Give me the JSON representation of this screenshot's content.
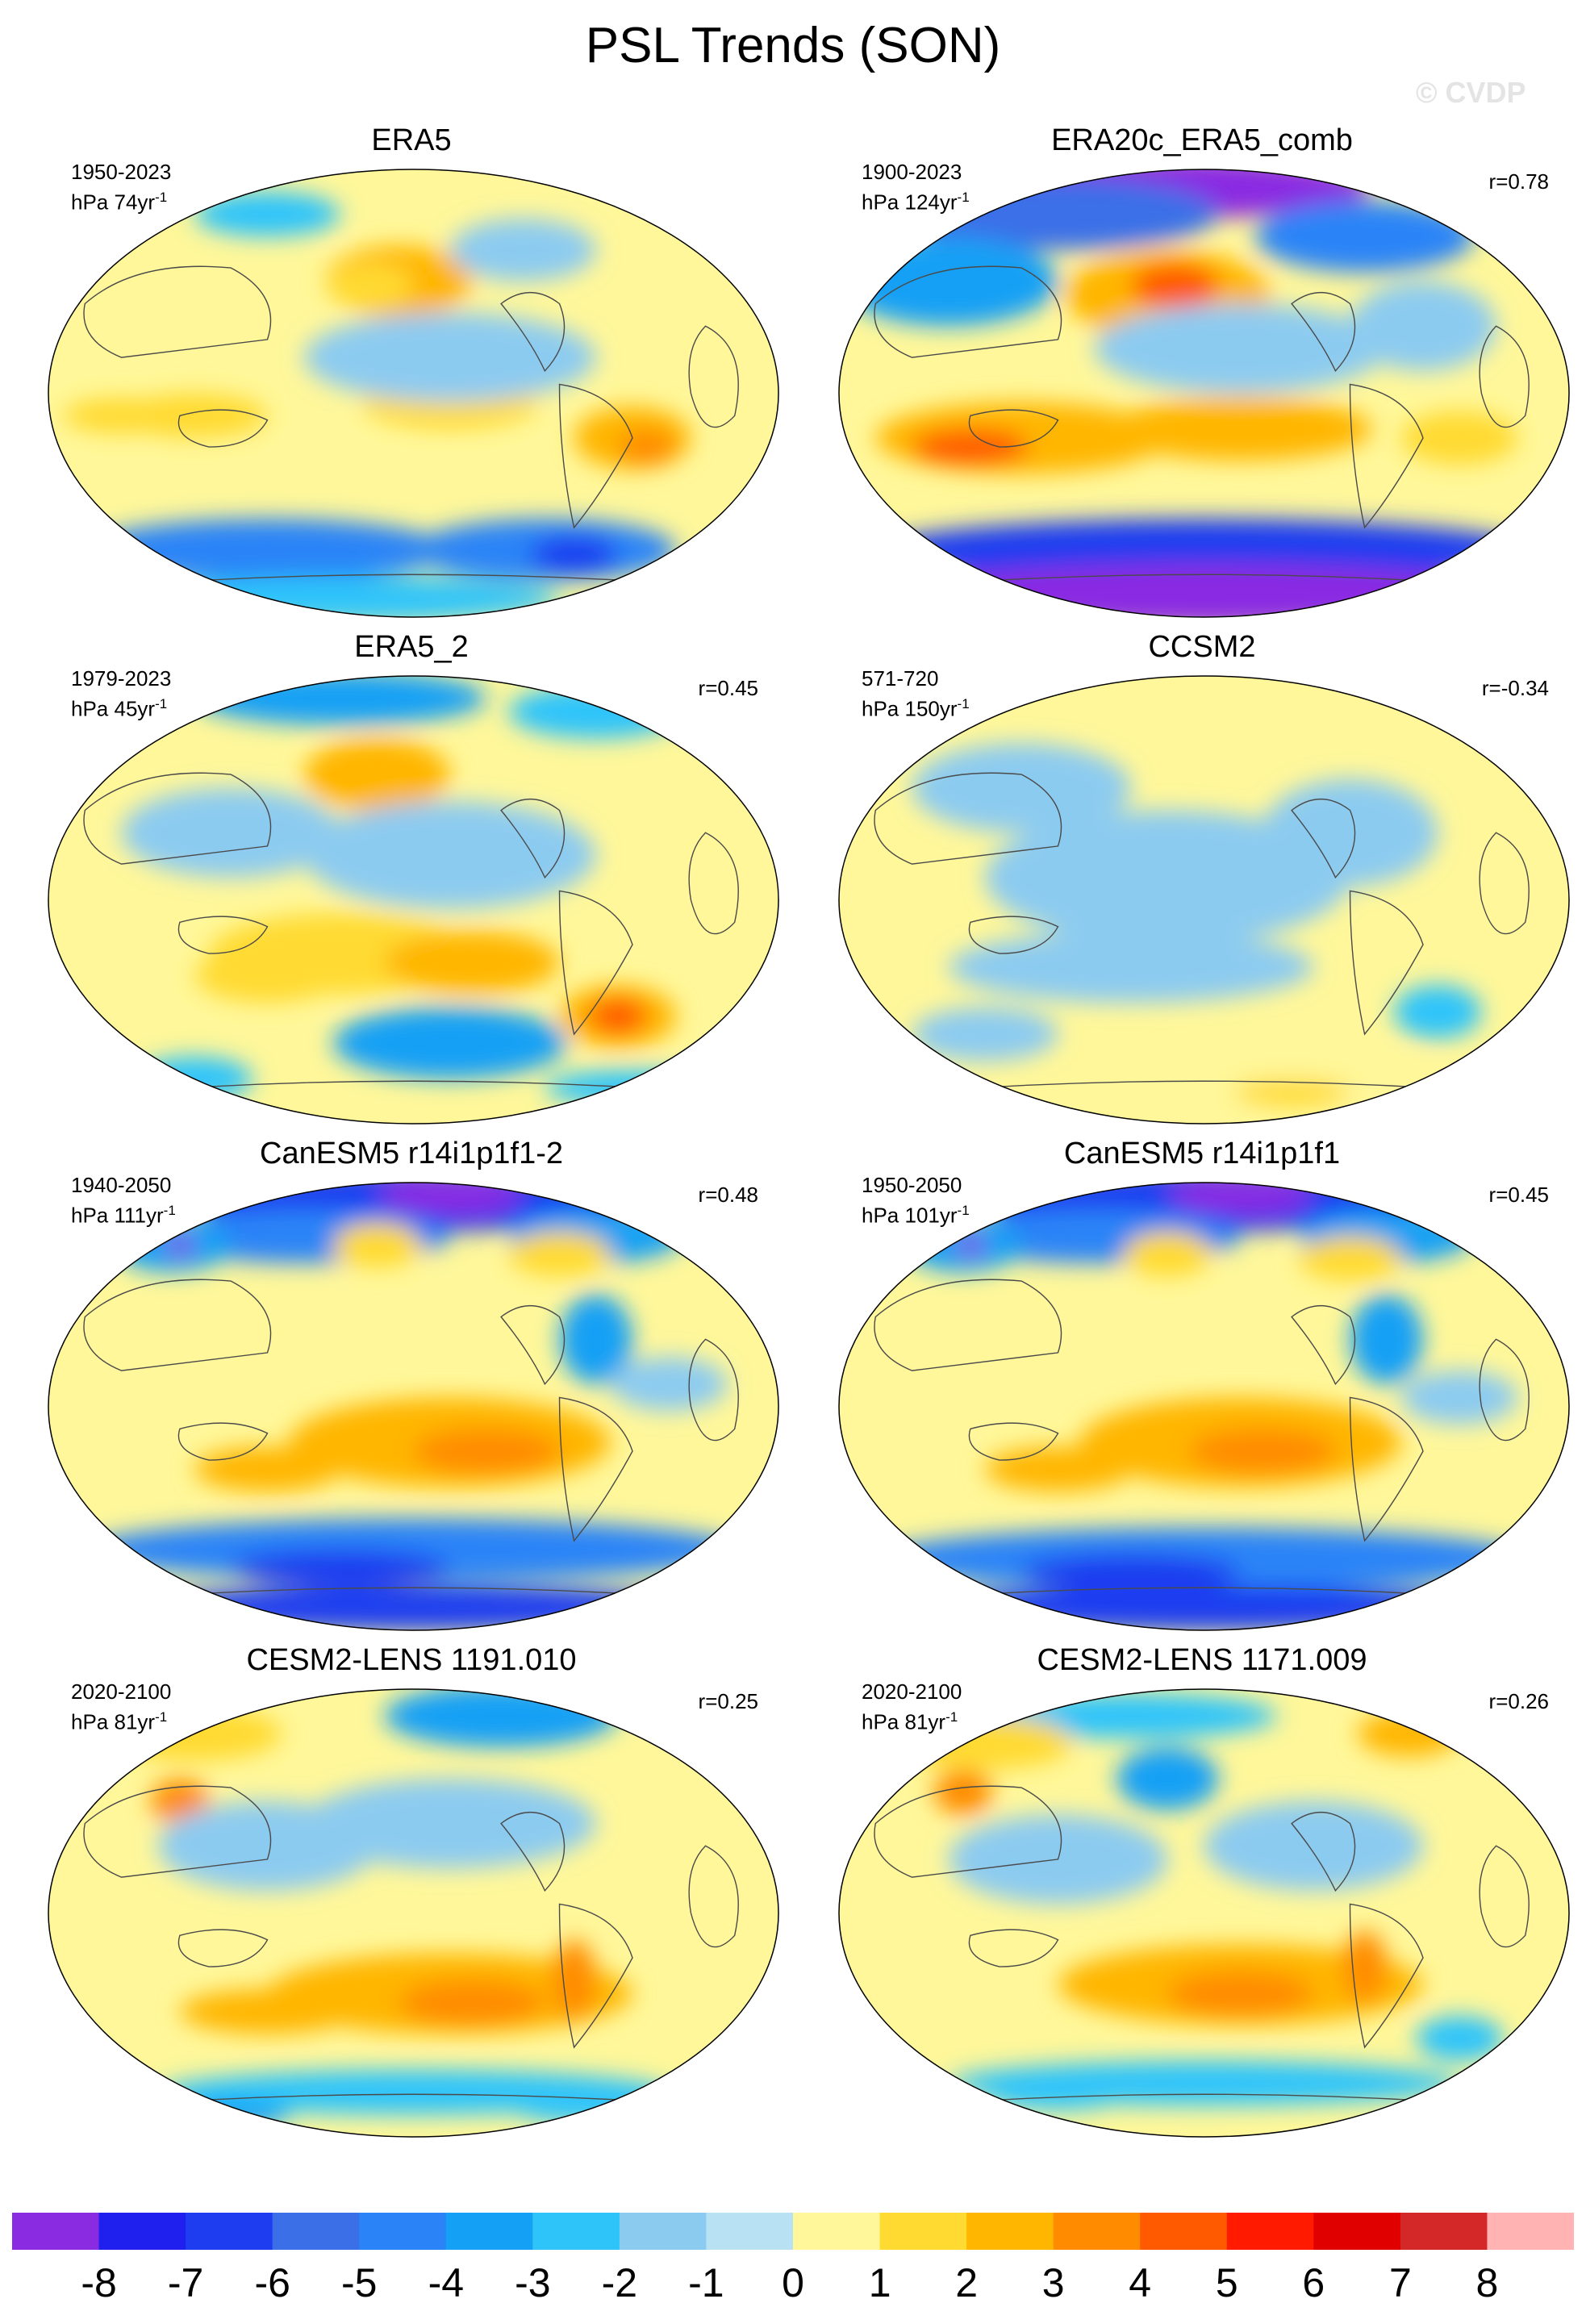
{
  "title": "PSL Trends (SON)",
  "watermark": "© CVDP",
  "panels": [
    {
      "name": "ERA5",
      "years": "1950-2023",
      "units": "hPa 74yr",
      "unit_exp": "-1",
      "r": "",
      "blobs": [
        [
          0.48,
          0.25,
          0.1,
          0.08,
          3
        ],
        [
          0.44,
          0.26,
          0.06,
          0.05,
          2
        ],
        [
          0.2,
          0.55,
          0.1,
          0.05,
          2
        ],
        [
          0.55,
          0.52,
          0.12,
          0.06,
          2
        ],
        [
          0.8,
          0.6,
          0.08,
          0.07,
          3
        ],
        [
          0.82,
          0.62,
          0.04,
          0.04,
          4
        ],
        [
          0.1,
          0.55,
          0.08,
          0.04,
          2
        ],
        [
          0.3,
          0.85,
          0.25,
          0.07,
          -4
        ],
        [
          0.68,
          0.85,
          0.18,
          0.07,
          -4
        ],
        [
          0.72,
          0.86,
          0.06,
          0.04,
          -6
        ],
        [
          0.3,
          0.1,
          0.1,
          0.05,
          -2
        ],
        [
          0.65,
          0.18,
          0.1,
          0.07,
          -1
        ],
        [
          0.55,
          0.42,
          0.2,
          0.1,
          -1
        ],
        [
          0.4,
          0.96,
          0.3,
          0.05,
          -2
        ]
      ]
    },
    {
      "name": "ERA20c_ERA5_comb",
      "years": "1900-2023",
      "units": "hPa 124yr",
      "unit_exp": "-1",
      "r": "r=0.78",
      "blobs": [
        [
          0.45,
          0.04,
          0.28,
          0.07,
          -8
        ],
        [
          0.3,
          0.1,
          0.22,
          0.08,
          -5
        ],
        [
          0.72,
          0.15,
          0.15,
          0.08,
          -4
        ],
        [
          0.15,
          0.25,
          0.15,
          0.1,
          -3
        ],
        [
          0.45,
          0.28,
          0.14,
          0.1,
          3
        ],
        [
          0.46,
          0.26,
          0.06,
          0.05,
          5
        ],
        [
          0.25,
          0.6,
          0.2,
          0.08,
          3
        ],
        [
          0.18,
          0.62,
          0.08,
          0.04,
          5
        ],
        [
          0.55,
          0.58,
          0.18,
          0.07,
          3
        ],
        [
          0.85,
          0.6,
          0.08,
          0.06,
          2
        ],
        [
          0.5,
          0.85,
          0.45,
          0.07,
          -6
        ],
        [
          0.5,
          0.95,
          0.45,
          0.07,
          -8
        ],
        [
          0.55,
          0.4,
          0.2,
          0.1,
          -1
        ],
        [
          0.8,
          0.35,
          0.1,
          0.1,
          -1
        ]
      ]
    },
    {
      "name": "ERA5_2",
      "years": "1979-2023",
      "units": "hPa 45yr",
      "unit_exp": "-1",
      "r": "r=0.45",
      "blobs": [
        [
          0.4,
          0.05,
          0.2,
          0.06,
          -3
        ],
        [
          0.75,
          0.08,
          0.12,
          0.06,
          -2
        ],
        [
          0.45,
          0.22,
          0.1,
          0.08,
          3
        ],
        [
          0.25,
          0.35,
          0.15,
          0.1,
          -1
        ],
        [
          0.55,
          0.4,
          0.2,
          0.12,
          -1
        ],
        [
          0.4,
          0.62,
          0.18,
          0.09,
          2
        ],
        [
          0.58,
          0.64,
          0.12,
          0.07,
          3
        ],
        [
          0.3,
          0.67,
          0.1,
          0.06,
          2
        ],
        [
          0.78,
          0.76,
          0.08,
          0.07,
          3
        ],
        [
          0.78,
          0.76,
          0.04,
          0.04,
          5
        ],
        [
          0.55,
          0.82,
          0.16,
          0.08,
          -3
        ],
        [
          0.8,
          0.92,
          0.12,
          0.04,
          -2
        ],
        [
          0.2,
          0.9,
          0.08,
          0.05,
          -2
        ]
      ]
    },
    {
      "name": "CCSM2",
      "years": "571-720",
      "units": "hPa 150yr",
      "unit_exp": "-1",
      "r": "r=-0.34",
      "blobs": [
        [
          0.25,
          0.25,
          0.15,
          0.1,
          -1
        ],
        [
          0.45,
          0.45,
          0.25,
          0.15,
          -1
        ],
        [
          0.7,
          0.35,
          0.12,
          0.12,
          -1
        ],
        [
          0.4,
          0.65,
          0.25,
          0.08,
          -1
        ],
        [
          0.82,
          0.75,
          0.06,
          0.06,
          -2
        ],
        [
          0.6,
          0.9,
          0.25,
          0.06,
          1
        ],
        [
          0.62,
          0.93,
          0.08,
          0.03,
          2
        ],
        [
          0.2,
          0.8,
          0.1,
          0.06,
          -1
        ]
      ]
    },
    {
      "name": "CanESM5 r14i1p1f1-2",
      "years": "1940-2050",
      "units": "hPa 111yr",
      "unit_exp": "-1",
      "r": "r=0.48",
      "blobs": [
        [
          0.5,
          0.04,
          0.3,
          0.07,
          -6
        ],
        [
          0.55,
          0.03,
          0.1,
          0.04,
          -8
        ],
        [
          0.35,
          0.12,
          0.2,
          0.06,
          -4
        ],
        [
          0.75,
          0.12,
          0.12,
          0.06,
          -3
        ],
        [
          0.17,
          0.14,
          0.08,
          0.06,
          -3
        ],
        [
          0.18,
          0.14,
          0.02,
          0.02,
          -8
        ],
        [
          0.45,
          0.14,
          0.06,
          0.05,
          2
        ],
        [
          0.7,
          0.16,
          0.07,
          0.05,
          2
        ],
        [
          0.55,
          0.58,
          0.22,
          0.1,
          3
        ],
        [
          0.6,
          0.6,
          0.1,
          0.05,
          4
        ],
        [
          0.3,
          0.64,
          0.1,
          0.05,
          3
        ],
        [
          0.75,
          0.35,
          0.05,
          0.1,
          -3
        ],
        [
          0.5,
          0.82,
          0.45,
          0.07,
          -4
        ],
        [
          0.4,
          0.86,
          0.15,
          0.04,
          -6
        ],
        [
          0.5,
          0.95,
          0.4,
          0.05,
          -6
        ],
        [
          0.85,
          0.45,
          0.08,
          0.06,
          -1
        ]
      ]
    },
    {
      "name": "CanESM5 r14i1p1f1",
      "years": "1950-2050",
      "units": "hPa 101yr",
      "unit_exp": "-1",
      "r": "r=0.45",
      "blobs": [
        [
          0.5,
          0.04,
          0.3,
          0.07,
          -6
        ],
        [
          0.55,
          0.03,
          0.1,
          0.04,
          -8
        ],
        [
          0.35,
          0.12,
          0.2,
          0.06,
          -4
        ],
        [
          0.75,
          0.12,
          0.12,
          0.06,
          -3
        ],
        [
          0.17,
          0.14,
          0.08,
          0.06,
          -3
        ],
        [
          0.18,
          0.14,
          0.02,
          0.02,
          -8
        ],
        [
          0.45,
          0.16,
          0.06,
          0.05,
          2
        ],
        [
          0.7,
          0.17,
          0.07,
          0.05,
          2
        ],
        [
          0.55,
          0.58,
          0.22,
          0.1,
          3
        ],
        [
          0.58,
          0.6,
          0.1,
          0.05,
          4
        ],
        [
          0.3,
          0.64,
          0.1,
          0.05,
          3
        ],
        [
          0.75,
          0.35,
          0.05,
          0.1,
          -3
        ],
        [
          0.5,
          0.84,
          0.45,
          0.07,
          -4
        ],
        [
          0.4,
          0.87,
          0.15,
          0.04,
          -6
        ],
        [
          0.5,
          0.95,
          0.4,
          0.05,
          -6
        ],
        [
          0.85,
          0.48,
          0.08,
          0.06,
          -1
        ]
      ]
    },
    {
      "name": "CESM2-LENS 1191.010",
      "years": "2020-2100",
      "units": "hPa 81yr",
      "unit_exp": "-1",
      "r": "r=0.25",
      "blobs": [
        [
          0.62,
          0.06,
          0.16,
          0.07,
          -3
        ],
        [
          0.2,
          0.1,
          0.12,
          0.06,
          2
        ],
        [
          0.18,
          0.25,
          0.04,
          0.05,
          4
        ],
        [
          0.3,
          0.35,
          0.15,
          0.1,
          -1
        ],
        [
          0.55,
          0.3,
          0.2,
          0.1,
          -1
        ],
        [
          0.55,
          0.68,
          0.25,
          0.09,
          3
        ],
        [
          0.58,
          0.7,
          0.1,
          0.05,
          4
        ],
        [
          0.3,
          0.72,
          0.12,
          0.05,
          3
        ],
        [
          0.72,
          0.65,
          0.03,
          0.09,
          4
        ],
        [
          0.5,
          0.9,
          0.35,
          0.05,
          -2
        ],
        [
          0.75,
          0.93,
          0.12,
          0.04,
          -2
        ],
        [
          0.25,
          0.95,
          0.08,
          0.03,
          -3
        ]
      ]
    },
    {
      "name": "CESM2-LENS 1171.009",
      "years": "2020-2100",
      "units": "hPa 81yr",
      "unit_exp": "-1",
      "r": "r=0.26",
      "blobs": [
        [
          0.45,
          0.2,
          0.07,
          0.07,
          -3
        ],
        [
          0.4,
          0.06,
          0.2,
          0.05,
          -2
        ],
        [
          0.78,
          0.1,
          0.07,
          0.05,
          3
        ],
        [
          0.17,
          0.23,
          0.04,
          0.05,
          4
        ],
        [
          0.2,
          0.12,
          0.12,
          0.06,
          2
        ],
        [
          0.55,
          0.66,
          0.25,
          0.09,
          3
        ],
        [
          0.55,
          0.68,
          0.1,
          0.05,
          4
        ],
        [
          0.72,
          0.62,
          0.03,
          0.08,
          4
        ],
        [
          0.3,
          0.38,
          0.15,
          0.1,
          -1
        ],
        [
          0.65,
          0.35,
          0.15,
          0.1,
          -1
        ],
        [
          0.5,
          0.88,
          0.35,
          0.05,
          -2
        ],
        [
          0.85,
          0.78,
          0.06,
          0.05,
          -2
        ],
        [
          0.3,
          0.9,
          0.1,
          0.04,
          -2
        ]
      ]
    }
  ],
  "colorbar": {
    "labels": [
      "-8",
      "-7",
      "-6",
      "-5",
      "-4",
      "-3",
      "-2",
      "-1",
      "0",
      "1",
      "2",
      "3",
      "4",
      "5",
      "6",
      "7",
      "8"
    ],
    "colors": [
      "#8a2be2",
      "#2020ee",
      "#1e3cf0",
      "#3b6fe8",
      "#2a84f7",
      "#14a0f5",
      "#2ec4fa",
      "#8ccbf0",
      "#b8e2f4",
      "#fff79a",
      "#ffda30",
      "#ffb600",
      "#ff8c00",
      "#ff5a00",
      "#ff1a00",
      "#e00000",
      "#d42828",
      "#ffb3b3"
    ]
  }
}
